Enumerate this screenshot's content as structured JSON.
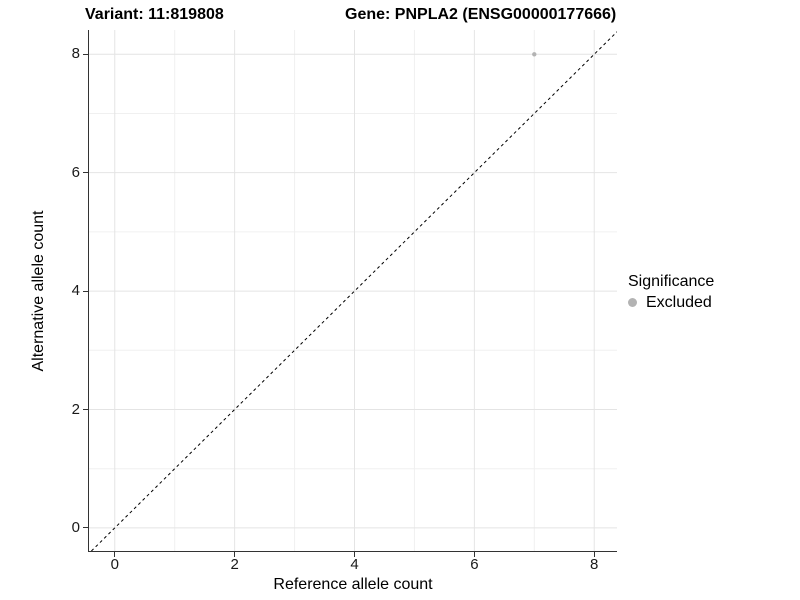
{
  "header": {
    "title_left": "Variant: 11:819808",
    "title_right": "Gene: PNPLA2 (ENSG00000177666)"
  },
  "axes": {
    "x_label": "Reference allele count",
    "y_label": "Alternative allele count"
  },
  "legend": {
    "title": "Significance",
    "items": [
      {
        "label": "Excluded",
        "color": "#b3b3b3"
      }
    ]
  },
  "chart_data": {
    "type": "scatter",
    "title": "Variant: 11:819808   Gene: PNPLA2 (ENSG00000177666)",
    "xlabel": "Reference allele count",
    "ylabel": "Alternative allele count",
    "xlim": [
      -0.43,
      8.38
    ],
    "ylim": [
      -0.39,
      8.41
    ],
    "x_breaks": [
      0,
      2,
      4,
      6,
      8
    ],
    "y_breaks": [
      0,
      2,
      4,
      6,
      8
    ],
    "x_minor_breaks": [
      1,
      3,
      5,
      7
    ],
    "y_minor_breaks": [
      1,
      3,
      5,
      7
    ],
    "grid": true,
    "legend_position": "right",
    "series": [
      {
        "name": "Excluded",
        "color": "#b3b3b3",
        "points": [
          {
            "x": 7,
            "y": 8
          }
        ]
      }
    ],
    "reference_line": {
      "style": "dashed",
      "slope": 1,
      "intercept": 0,
      "color": "#000000"
    },
    "colors": {
      "major_grid": "#e4e4e4",
      "minor_grid": "#f0f0f0",
      "axis": "#333333",
      "background": "#ffffff"
    }
  }
}
